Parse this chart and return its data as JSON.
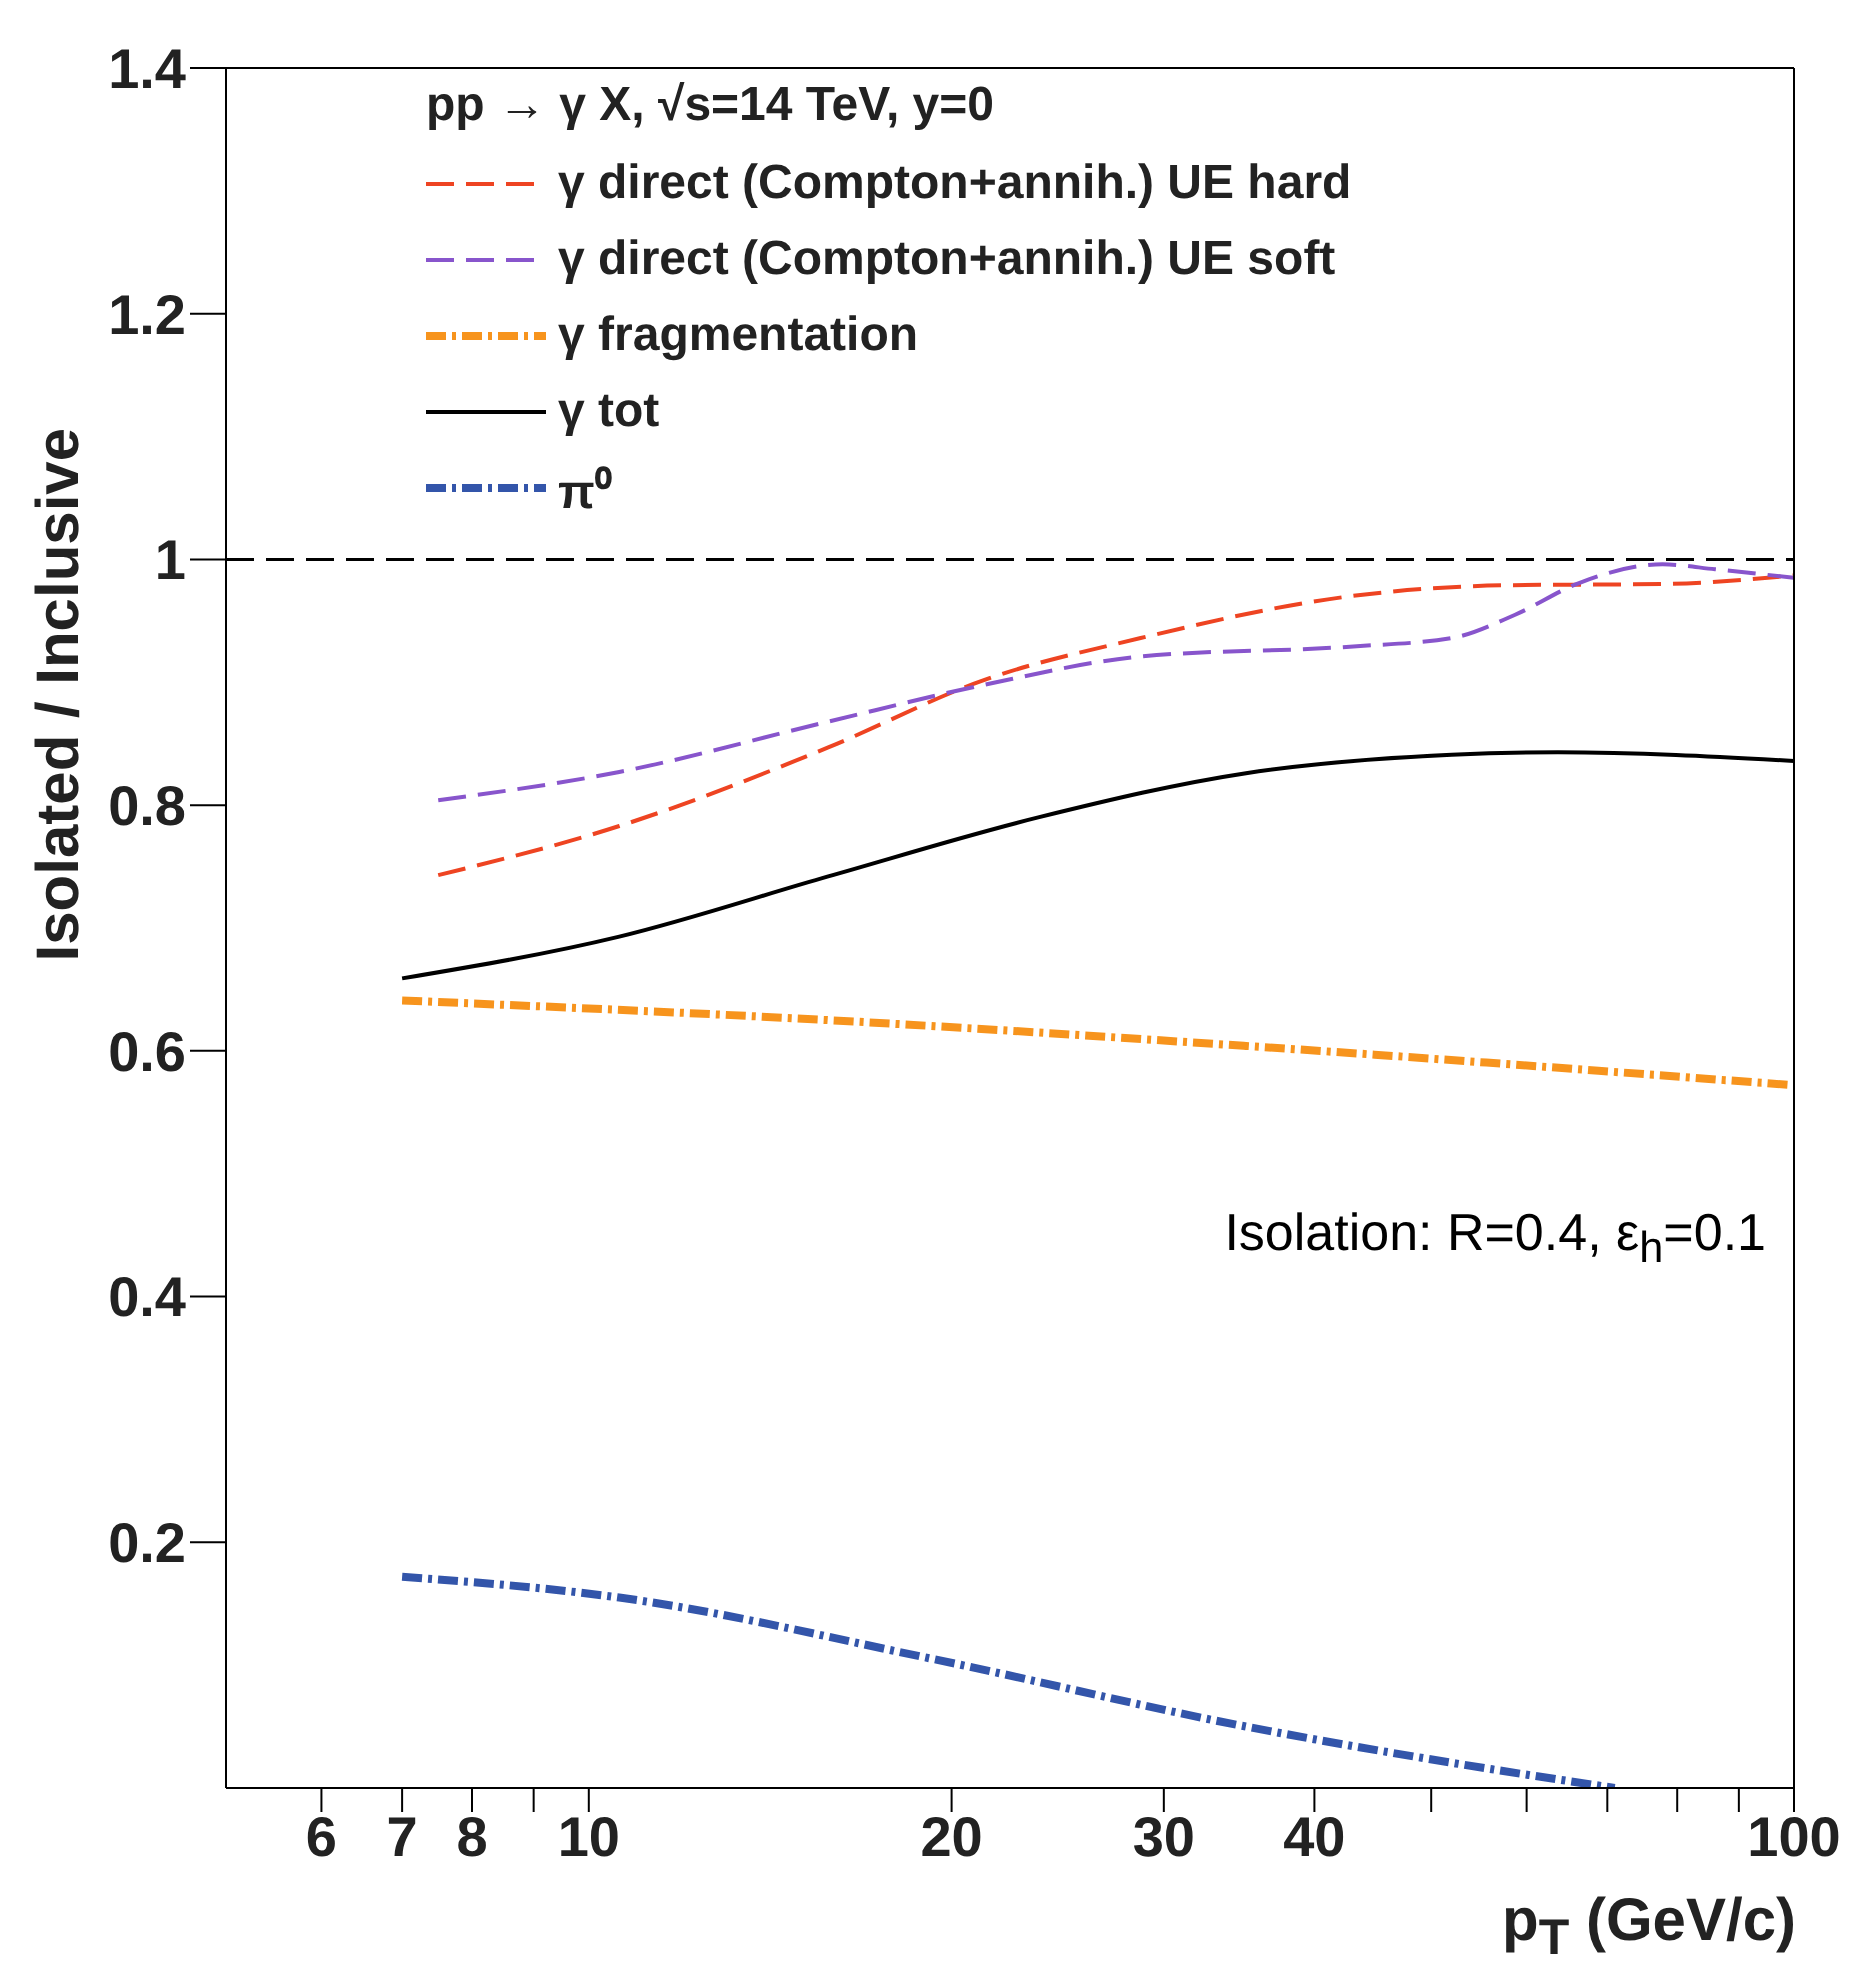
{
  "chart_data": {
    "type": "line",
    "xlabel": "p$_{T}$ (GeV/c)",
    "ylabel": "Isolated / Inclusive",
    "legend_title": "pp → γ X, √s=14 TeV, y=0",
    "log": "x",
    "xlim": [
      5,
      100
    ],
    "ylim": [
      0,
      1.4
    ],
    "xticks": [
      6,
      7,
      8,
      {
        "value": 9,
        "label": null
      },
      10,
      20,
      30,
      40,
      {
        "value": 50,
        "label": null
      },
      {
        "value": 60,
        "label": null
      },
      {
        "value": 70,
        "label": null
      },
      {
        "value": 80,
        "label": null
      },
      {
        "value": 90,
        "label": null
      },
      100
    ],
    "yticks": [
      0.2,
      0.4,
      0.6,
      0.8,
      1,
      1.2,
      1.4
    ],
    "legend": "top left",
    "marker": "none",
    "ref_lines": [
      {
        "axis": "y",
        "value": 1,
        "color": "#000000",
        "line_style": "dashed"
      }
    ],
    "annotations": [
      "Isolation: R=0.4,  ε$_{h}$=0.1"
    ],
    "series": [
      {
        "name": "γ direct (Compton+annih.) UE hard",
        "color": "#ee4422",
        "line_style": "dashed",
        "x": [
          7.5,
          10.6,
          15.8,
          21.3,
          28.7,
          42.8,
          57.7,
          77.8,
          100
        ],
        "values": [
          0.743,
          0.783,
          0.847,
          0.902,
          0.936,
          0.97,
          0.979,
          0.98,
          0.987
        ]
      },
      {
        "name": "γ direct (Compton+annih.) UE soft",
        "color": "#8855cc",
        "line_style": "dashed",
        "x": [
          7.5,
          10.6,
          15.8,
          21.3,
          28.7,
          42.8,
          52,
          58.7,
          66.4,
          77.8,
          86,
          100
        ],
        "values": [
          0.804,
          0.827,
          0.868,
          0.898,
          0.921,
          0.929,
          0.936,
          0.955,
          0.981,
          0.996,
          0.992,
          0.985
        ]
      },
      {
        "name": "γ fragmentation",
        "color": "#f7941d",
        "line_style": "dashdot",
        "x": [
          7,
          15.8,
          35.1,
          100
        ],
        "values": [
          0.641,
          0.625,
          0.604,
          0.572
        ]
      },
      {
        "name": "γ tot",
        "color": "#000000",
        "line_style": "solid",
        "x": [
          7,
          10.6,
          15.8,
          23.6,
          35.1,
          52,
          63.7,
          100
        ],
        "values": [
          0.659,
          0.693,
          0.742,
          0.79,
          0.826,
          0.841,
          0.843,
          0.836
        ]
      },
      {
        "name": "π⁰",
        "color": "#3355aa",
        "line_style": "dashdot",
        "x": [
          7,
          10.6,
          19.3,
          35.1,
          52.4,
          71
        ],
        "values": [
          0.172,
          0.155,
          0.105,
          0.05,
          0.02,
          0.0
        ]
      }
    ]
  }
}
